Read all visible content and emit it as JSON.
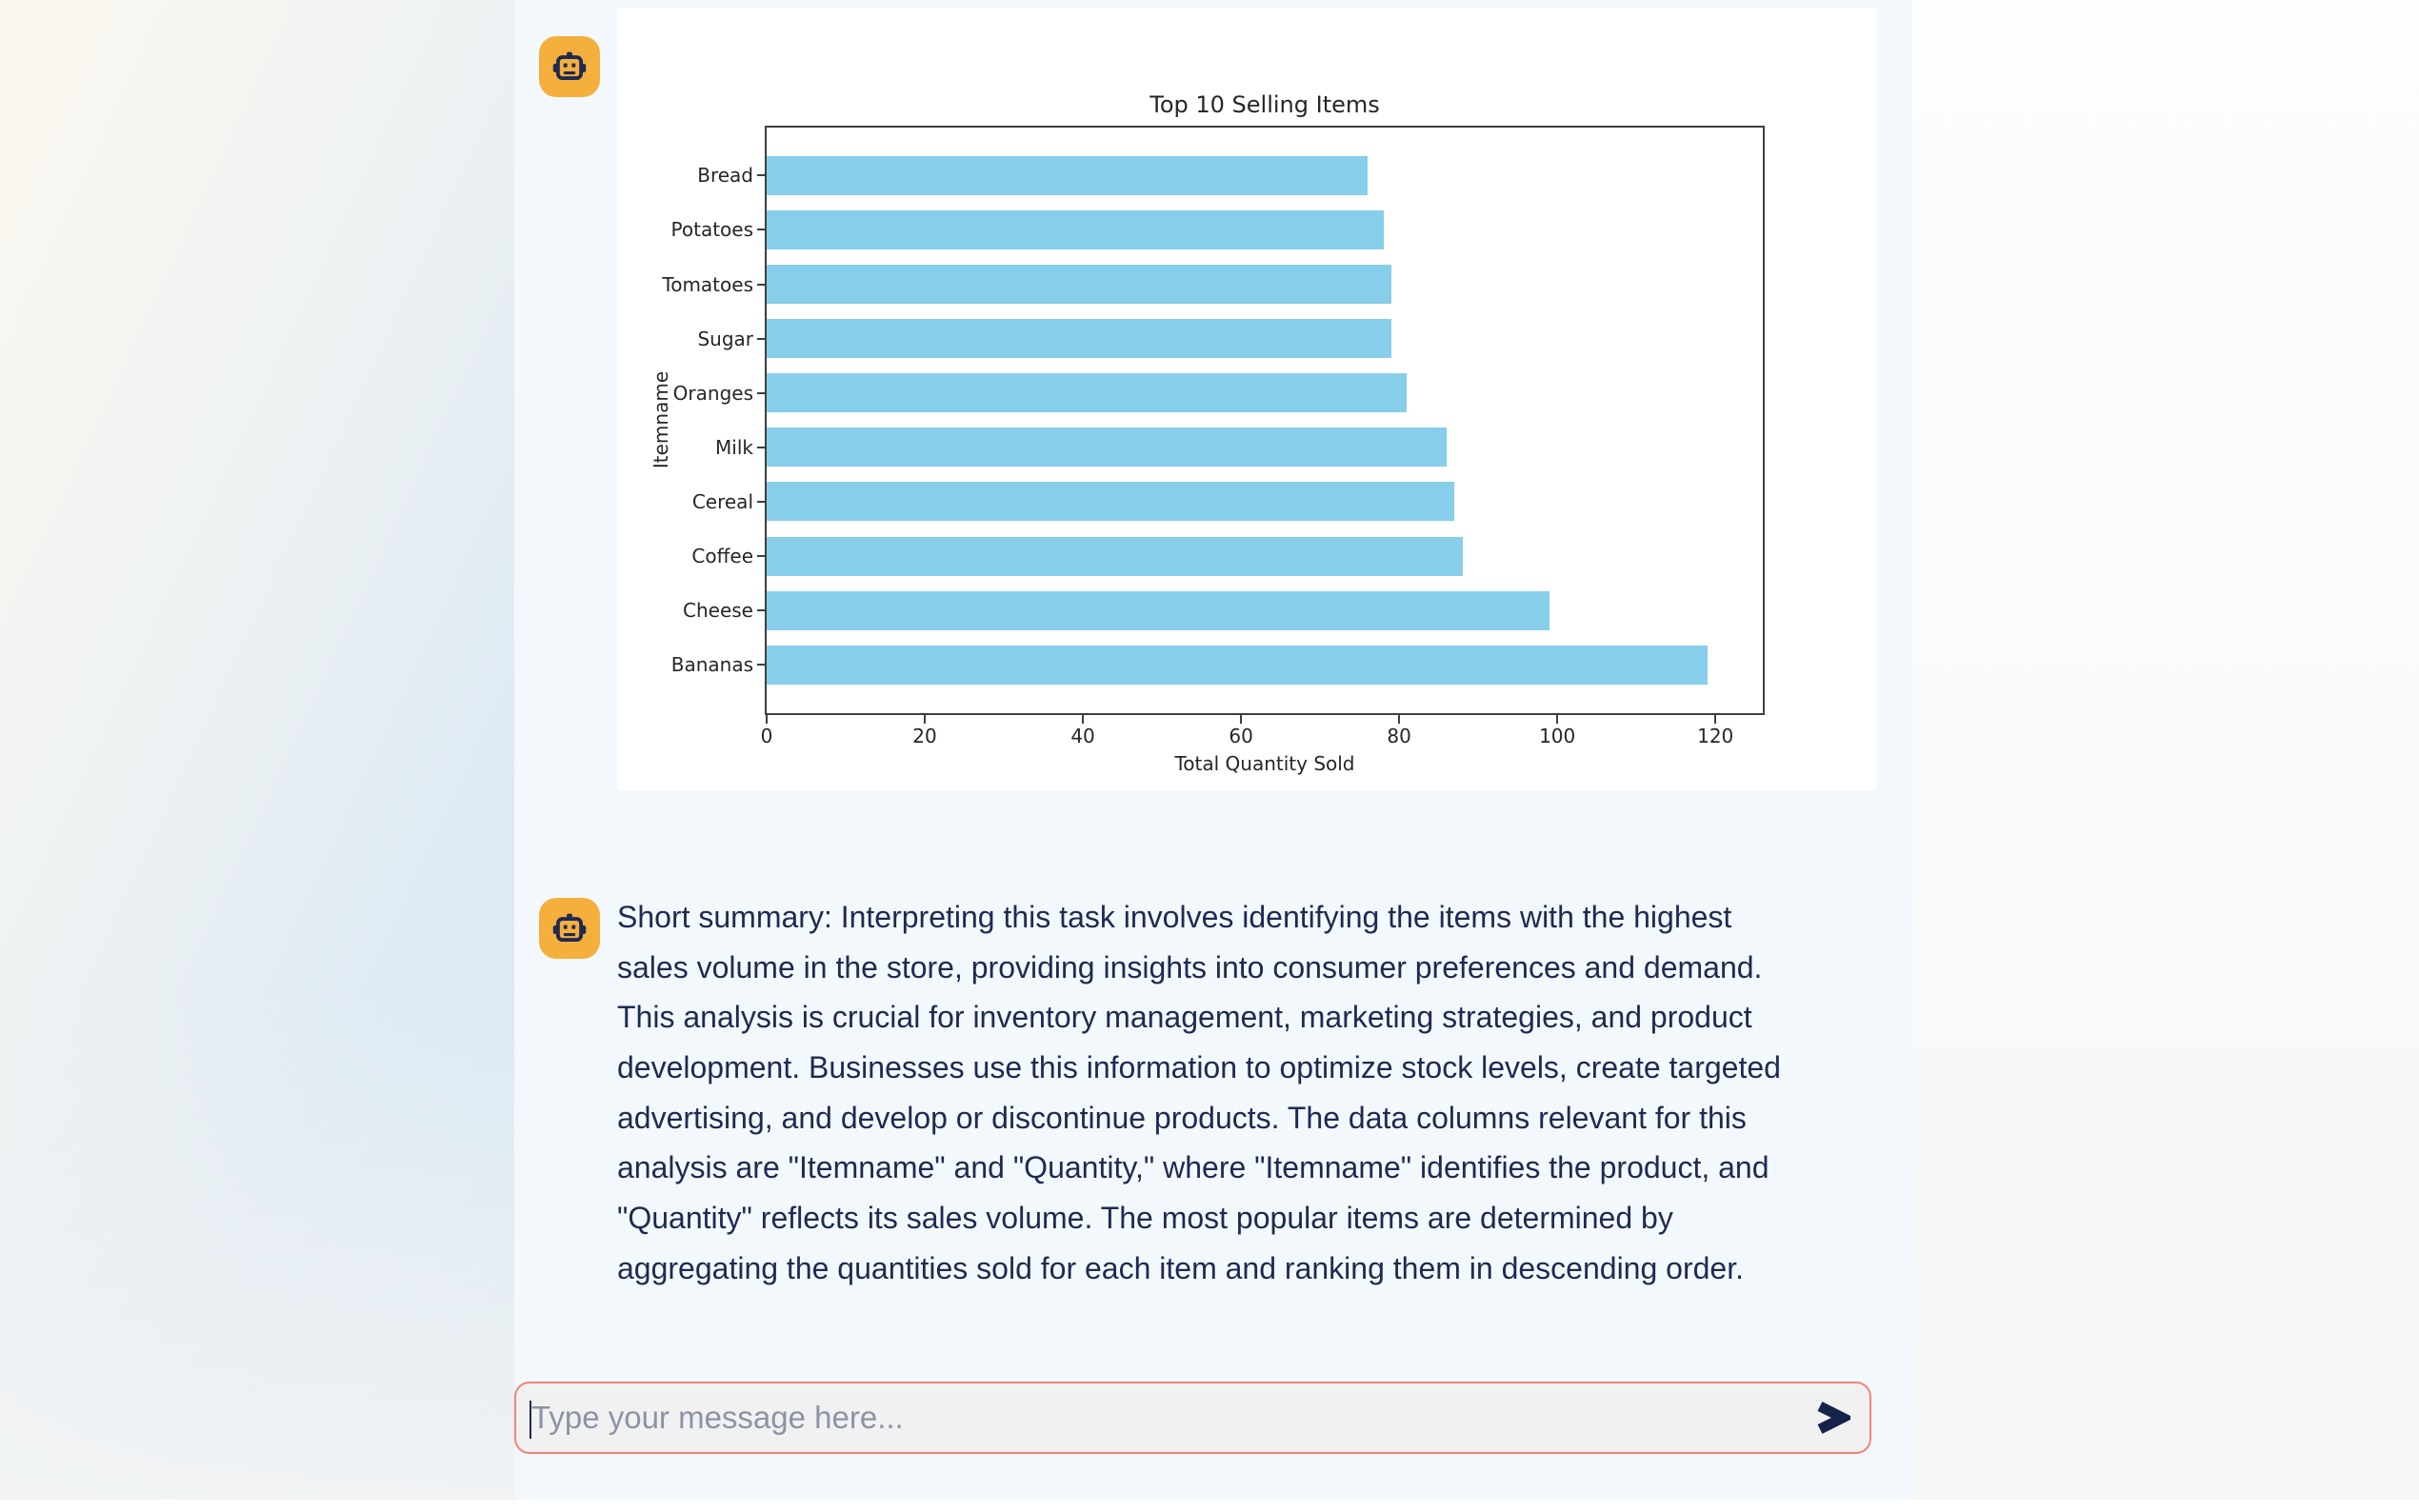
{
  "messages": {
    "bot1": {
      "avatar_icon": "robot-icon"
    },
    "bot2": {
      "avatar_icon": "robot-icon",
      "lines": [
        "Short summary: Interpreting this task involves identifying the items with the highest",
        "sales volume in the store, providing insights into consumer preferences and demand.",
        "This analysis is crucial for inventory management, marketing strategies, and product",
        "development. Businesses use this information to optimize stock levels, create targeted",
        "advertising, and develop or discontinue products. The data columns relevant for this",
        "analysis are \"Itemname\" and \"Quantity,\" where \"Itemname\" identifies the product, and",
        "\"Quantity\" reflects its sales volume. The most popular items are determined by",
        "aggregating the quantities sold for each item and ranking them in descending order."
      ]
    }
  },
  "chart_data": {
    "type": "bar",
    "orientation": "horizontal",
    "title": "Top 10 Selling Items",
    "categories": [
      "Bread",
      "Potatoes",
      "Tomatoes",
      "Sugar",
      "Oranges",
      "Milk",
      "Cereal",
      "Coffee",
      "Cheese",
      "Bananas"
    ],
    "values": [
      76,
      78,
      79,
      79,
      81,
      86,
      87,
      88,
      99,
      119
    ],
    "xlabel": "Total Quantity Sold",
    "ylabel": "Itemname",
    "xlim": [
      0,
      126
    ],
    "xticks": [
      0,
      20,
      40,
      60,
      80,
      100,
      120
    ],
    "bar_color": "#87CEEB",
    "grid": false,
    "legend": null
  },
  "input": {
    "placeholder": "Type your message here...",
    "send_icon": "send-arrow-icon"
  },
  "colors": {
    "avatar_orange": "#F4AF3D",
    "navy": "#1F2A52",
    "input_border": "#F2837B",
    "input_bg": "#F1F1F2",
    "bar_blue": "#87CEEB",
    "content_bg": "#F3F8FC"
  }
}
